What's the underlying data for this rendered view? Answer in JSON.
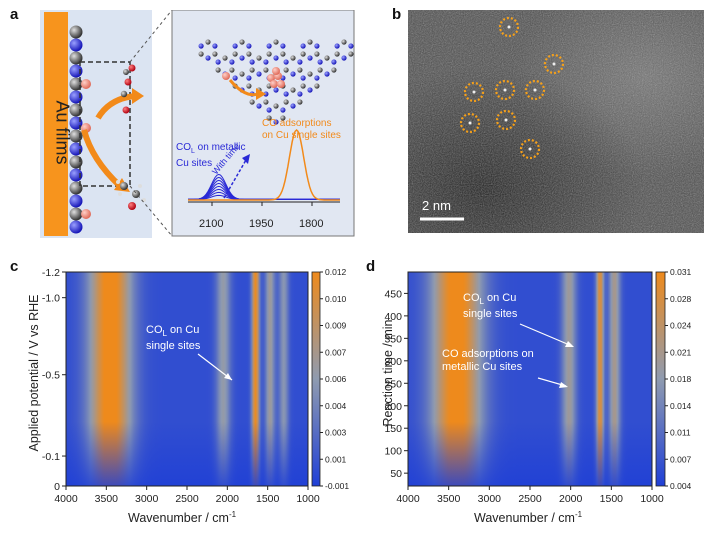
{
  "panel_labels": {
    "a": "a",
    "b": "b",
    "c": "c",
    "d": "d"
  },
  "panel_a": {
    "electrode_label": "Au films",
    "co_metallic_label_line1": "CO",
    "co_metallic_label_sub": "L",
    "co_metallic_label_rest": " on metallic",
    "co_metallic_label_line2": "Cu sites",
    "co_single_label_line1": "CO adsorptions",
    "co_single_label_line2": "on Cu single sites",
    "with_time_label": "With time",
    "axis_ticks": [
      "2100",
      "1950",
      "1800"
    ],
    "colors": {
      "electrode": "#f7941d",
      "metallic": "#2a2ad6",
      "single": "#f28a1a",
      "inset_bg": "#dfe6f3"
    }
  },
  "panel_b": {
    "scale_bar_label": "2 nm",
    "marker_color": "#f5a01a",
    "single_atom_count": 9
  },
  "chart_data": [
    {
      "type": "heatmap",
      "panel": "c",
      "xlabel": "Wavenumber / cm",
      "xlabel_sup": "-1",
      "ylabel": "Applied potential / V vs RHE",
      "xlim": [
        4000,
        1000
      ],
      "x_ticks": [
        "4000",
        "3500",
        "3000",
        "2500",
        "2000",
        "1500",
        "1000"
      ],
      "y_ticks": [
        "-1.2",
        "-1.0",
        "-0.5",
        "-0.1",
        "0"
      ],
      "colorbar_ticks": [
        "0.012",
        "0.010",
        "0.009",
        "0.007",
        "0.006",
        "0.004",
        "0.003",
        "0.001",
        "-0.001"
      ],
      "colorscale": [
        "#1f3fd6",
        "#8f9bb0",
        "#ee8a1c"
      ],
      "annotation": {
        "line1": "CO",
        "sub": "L",
        "rest": " on Cu",
        "line2": "single sites"
      },
      "bands": [
        {
          "center": 3450,
          "width": 260,
          "intensity": 1.0
        },
        {
          "center": 2050,
          "width": 90,
          "intensity": 0.45
        },
        {
          "center": 1650,
          "width": 45,
          "intensity": 0.95
        },
        {
          "center": 1470,
          "width": 60,
          "intensity": 0.5
        },
        {
          "center": 1300,
          "width": 60,
          "intensity": 0.4
        }
      ]
    },
    {
      "type": "heatmap",
      "panel": "d",
      "xlabel": "Wavenumber / cm",
      "xlabel_sup": "-1",
      "ylabel": "Reaction time / min",
      "xlim": [
        4000,
        1000
      ],
      "ylim": [
        25,
        480
      ],
      "x_ticks": [
        "4000",
        "3500",
        "3000",
        "2500",
        "2000",
        "1500",
        "1000"
      ],
      "y_ticks": [
        "450",
        "400",
        "350",
        "300",
        "250",
        "200",
        "150",
        "100",
        "50"
      ],
      "colorbar_ticks": [
        "0.031",
        "0.028",
        "0.024",
        "0.021",
        "0.018",
        "0.014",
        "0.011",
        "0.007",
        "0.004"
      ],
      "colorscale": [
        "#1f3fd6",
        "#8f9bb0",
        "#ee8a1c"
      ],
      "annotation1": {
        "line1": "CO",
        "sub": "L",
        "rest": " on Cu",
        "line2": "single sites"
      },
      "annotation2": {
        "line1": "CO adsorptions on",
        "line2": "metallic Cu sites"
      },
      "bands": [
        {
          "center": 3400,
          "width": 300,
          "intensity": 1.0
        },
        {
          "center": 2020,
          "width": 90,
          "intensity": 0.5
        },
        {
          "center": 1640,
          "width": 45,
          "intensity": 0.85
        },
        {
          "center": 1460,
          "width": 70,
          "intensity": 0.55
        }
      ]
    }
  ]
}
